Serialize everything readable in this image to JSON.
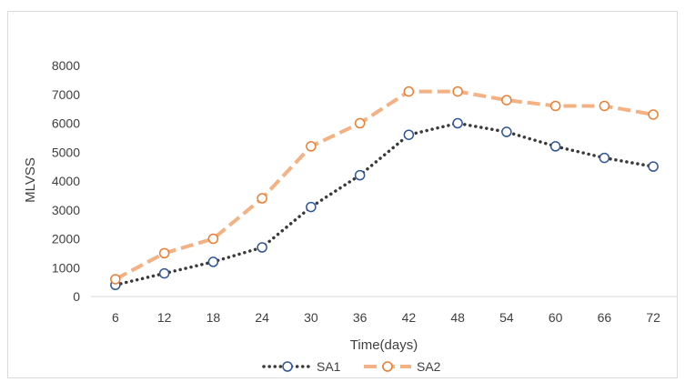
{
  "chart_data": {
    "type": "line",
    "title": "",
    "xlabel": "Time(days)",
    "ylabel": "MLVSS",
    "categories": [
      "6",
      "12",
      "18",
      "24",
      "30",
      "36",
      "42",
      "48",
      "54",
      "60",
      "66",
      "72"
    ],
    "yticks": [
      "0",
      "1000",
      "2000",
      "3000",
      "4000",
      "5000",
      "6000",
      "7000",
      "8000"
    ],
    "ylim": [
      0,
      8000
    ],
    "grid": false,
    "legend_position": "bottom",
    "series": [
      {
        "name": "SA1",
        "color": "#3a3a3a",
        "marker_color": "#2e5597",
        "line_style": "dotted",
        "values": [
          400,
          800,
          1200,
          1700,
          3100,
          4200,
          5600,
          6000,
          5700,
          5200,
          4800,
          4500
        ]
      },
      {
        "name": "SA2",
        "color": "#f4b183",
        "marker_color": "#ed7d31",
        "line_style": "dashed",
        "values": [
          600,
          1500,
          2000,
          3400,
          5200,
          6000,
          7100,
          7100,
          6800,
          6600,
          6600,
          6300
        ]
      }
    ]
  }
}
